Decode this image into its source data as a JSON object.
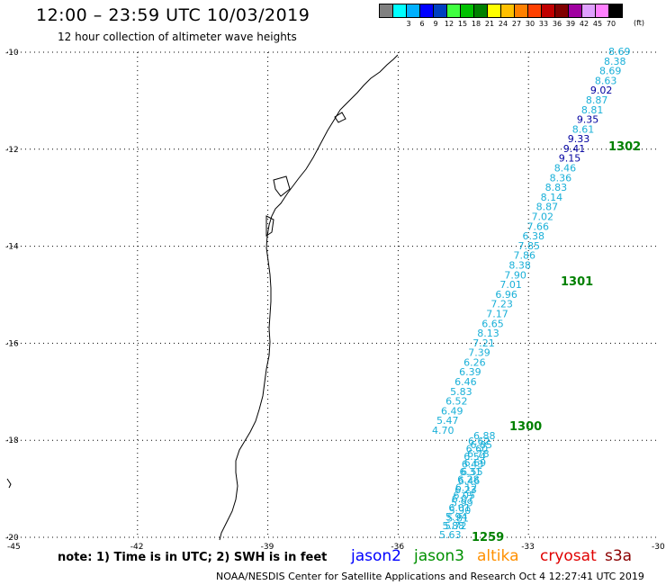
{
  "header": {
    "title": "12:00 – 23:59 UTC 10/03/2019",
    "subtitle": "12 hour collection of altimeter wave heights"
  },
  "colorbar": {
    "colors": [
      "#808080",
      "#00ffff",
      "#00b0ff",
      "#0000ff",
      "#0040c0",
      "#40ff40",
      "#00c000",
      "#008000",
      "#ffff00",
      "#ffc000",
      "#ff8000",
      "#ff4000",
      "#c00000",
      "#800000",
      "#a000a0",
      "#e0a0ff",
      "#ff80ff",
      "#000000"
    ],
    "labels": [
      "",
      "3",
      "6",
      "9",
      "12",
      "15",
      "18",
      "21",
      "24",
      "27",
      "30",
      "33",
      "36",
      "39",
      "42",
      "45",
      "70"
    ],
    "unit": "(ft)"
  },
  "map": {
    "lon_ticks": [
      "-45",
      "-42",
      "-39",
      "-36",
      "-33",
      "-30"
    ],
    "lon_values": [
      -45,
      -42,
      -39,
      -36,
      -33,
      -30
    ],
    "lat_ticks": [
      "-10",
      "-12",
      "-14",
      "-16",
      "-18",
      "-20"
    ],
    "lat_values": [
      -10,
      -12,
      -14,
      -16,
      -18,
      -20
    ],
    "track_color": "#1ab0d8",
    "highlight_color": "#0000a0",
    "pass_color": "#008000",
    "swh_upper": [
      {
        "v": "8.69",
        "c": "t"
      },
      {
        "v": "8.38",
        "c": "t"
      },
      {
        "v": "8.69",
        "c": "t"
      },
      {
        "v": "8.63",
        "c": "t"
      },
      {
        "v": "9.02",
        "c": "b"
      },
      {
        "v": "8.87",
        "c": "t"
      },
      {
        "v": "8.81",
        "c": "t"
      },
      {
        "v": "9.35",
        "c": "b"
      },
      {
        "v": "8.61",
        "c": "t"
      },
      {
        "v": "9.33",
        "c": "b"
      },
      {
        "v": "9.41",
        "c": "b"
      },
      {
        "v": "9.15",
        "c": "b"
      },
      {
        "v": "8.46",
        "c": "t"
      },
      {
        "v": "8.36",
        "c": "t"
      },
      {
        "v": "8.83",
        "c": "t"
      },
      {
        "v": "8.14",
        "c": "t"
      },
      {
        "v": "8.87",
        "c": "t"
      },
      {
        "v": "7.02",
        "c": "t"
      },
      {
        "v": "7.66",
        "c": "t"
      },
      {
        "v": "6.38",
        "c": "t"
      },
      {
        "v": "7.85",
        "c": "t"
      },
      {
        "v": "7.86",
        "c": "t"
      },
      {
        "v": "8.38",
        "c": "t"
      },
      {
        "v": "7.90",
        "c": "t"
      },
      {
        "v": "7.01",
        "c": "t"
      },
      {
        "v": "6.96",
        "c": "t"
      },
      {
        "v": "7.23",
        "c": "t"
      },
      {
        "v": "7.17",
        "c": "t"
      },
      {
        "v": "6.65",
        "c": "t"
      },
      {
        "v": "8.13",
        "c": "t"
      },
      {
        "v": "7.21",
        "c": "t"
      },
      {
        "v": "7.39",
        "c": "t"
      },
      {
        "v": "6.26",
        "c": "t"
      },
      {
        "v": "6.39",
        "c": "t"
      },
      {
        "v": "6.46",
        "c": "t"
      },
      {
        "v": "5.83",
        "c": "t"
      },
      {
        "v": "6.52",
        "c": "t"
      },
      {
        "v": "6.49",
        "c": "t"
      },
      {
        "v": "5.47",
        "c": "t"
      },
      {
        "v": "4.70",
        "c": "t"
      }
    ],
    "swh_lower_a": [
      "6.88",
      "6.85",
      "6.78",
      "6.69",
      "6.55",
      "6.46",
      "6.23",
      "6.07",
      "6.01",
      "5.94",
      "5.88",
      "5.63"
    ],
    "swh_lower_b": [
      "6.62",
      "6.60",
      "6.54",
      "6.43",
      "6.31",
      "6.28",
      "6.12",
      "6.05",
      "5.99",
      "5.90",
      "5.81",
      "5.72"
    ],
    "passes": [
      "1302",
      "1301",
      "1300",
      "1259"
    ]
  },
  "footer": {
    "note": "note: 1) Time is in UTC; 2) SWH is in feet",
    "legend": [
      {
        "name": "jason2",
        "color": "#0000ff"
      },
      {
        "name": "jason3",
        "color": "#009000"
      },
      {
        "name": "altika",
        "color": "#ff9000"
      },
      {
        "name": "cryosat",
        "color": "#e00000"
      },
      {
        "name": "s3a",
        "color": "#8b0000"
      }
    ],
    "credit": "NOAA/NESDIS Center for Satellite Applications and Research   Oct  4 12:27:41 UTC 2019"
  }
}
